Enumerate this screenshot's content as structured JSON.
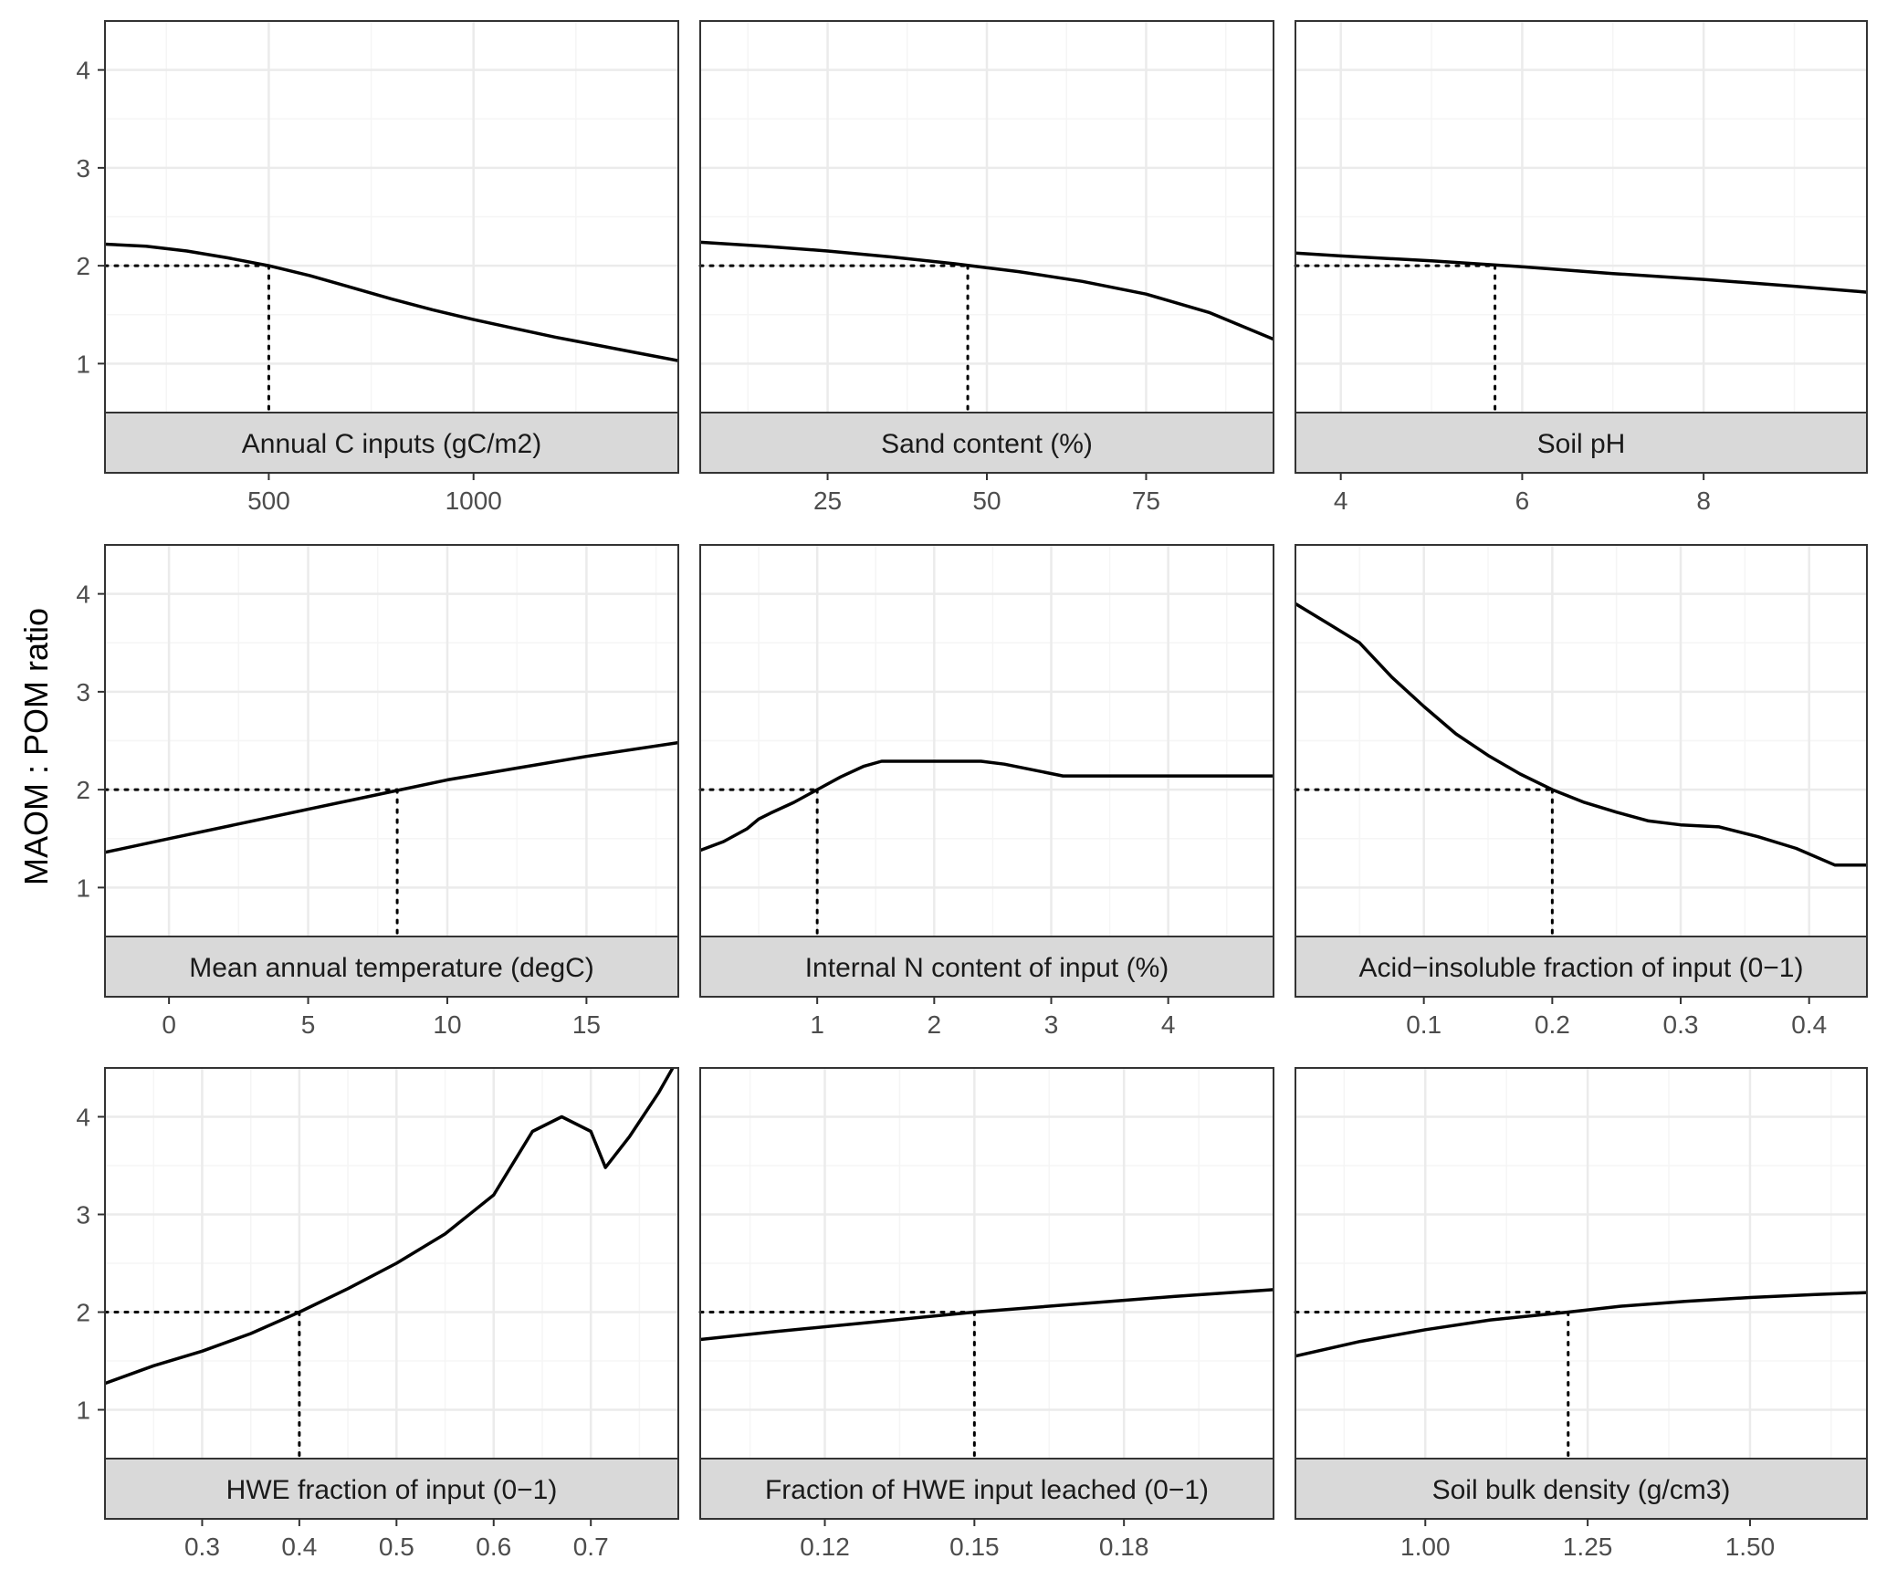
{
  "figure": {
    "ylabel": "MAOM : POM ratio",
    "colors": {
      "line": "#000000",
      "grid_major": "#ebebeb",
      "grid_minor": "#f5f5f5",
      "panel_border": "#333333",
      "strip_fill": "#d9d9d9",
      "tick_text": "#4d4d4d"
    }
  },
  "chart_data": [
    {
      "type": "line",
      "strip": "Annual C inputs (gC/m2)",
      "xlim": [
        100,
        1500
      ],
      "ylim": [
        0.5,
        4.5
      ],
      "xticks": [
        500,
        1000
      ],
      "xtick_labels": [
        "500",
        "1000"
      ],
      "yticks": [
        1,
        2,
        3,
        4
      ],
      "ytick_labels": [
        "1",
        "2",
        "3",
        "4"
      ],
      "x": [
        100,
        200,
        300,
        400,
        500,
        600,
        700,
        800,
        900,
        1000,
        1100,
        1200,
        1300,
        1400,
        1500
      ],
      "y": [
        2.22,
        2.2,
        2.15,
        2.08,
        2.0,
        1.9,
        1.78,
        1.66,
        1.55,
        1.45,
        1.36,
        1.27,
        1.19,
        1.11,
        1.03
      ],
      "reference": {
        "x": 500,
        "y": 2.0
      }
    },
    {
      "type": "line",
      "strip": "Sand content (%)",
      "xlim": [
        5,
        95
      ],
      "ylim": [
        0.5,
        4.5
      ],
      "xticks": [
        25,
        50,
        75
      ],
      "xtick_labels": [
        "25",
        "50",
        "75"
      ],
      "yticks": [
        1,
        2,
        3,
        4
      ],
      "ytick_labels": [
        "1",
        "2",
        "3",
        "4"
      ],
      "x": [
        5,
        15,
        25,
        35,
        45,
        55,
        65,
        75,
        85,
        95
      ],
      "y": [
        2.24,
        2.2,
        2.15,
        2.09,
        2.02,
        1.94,
        1.84,
        1.71,
        1.52,
        1.25
      ],
      "reference": {
        "x": 47,
        "y": 2.0
      }
    },
    {
      "type": "line",
      "strip": "Soil pH",
      "xlim": [
        3.5,
        9.8
      ],
      "ylim": [
        0.5,
        4.5
      ],
      "xticks": [
        4,
        6,
        8
      ],
      "xtick_labels": [
        "4",
        "6",
        "8"
      ],
      "yticks": [
        1,
        2,
        3,
        4
      ],
      "ytick_labels": [
        "1",
        "2",
        "3",
        "4"
      ],
      "x": [
        3.5,
        4,
        5,
        6,
        7,
        8,
        9,
        9.8
      ],
      "y": [
        2.13,
        2.1,
        2.05,
        1.99,
        1.92,
        1.86,
        1.79,
        1.73
      ],
      "reference": {
        "x": 5.7,
        "y": 2.0
      }
    },
    {
      "type": "line",
      "strip": "Mean annual temperature (degC)",
      "xlim": [
        -2.3,
        18.3
      ],
      "ylim": [
        0.5,
        4.5
      ],
      "xticks": [
        0,
        5,
        10,
        15
      ],
      "xtick_labels": [
        "0",
        "5",
        "10",
        "15"
      ],
      "yticks": [
        1,
        2,
        3,
        4
      ],
      "ytick_labels": [
        "1",
        "2",
        "3",
        "4"
      ],
      "x": [
        -2.3,
        0,
        2.5,
        5,
        7.5,
        10,
        12.5,
        15,
        18.3
      ],
      "y": [
        1.36,
        1.5,
        1.65,
        1.8,
        1.95,
        2.1,
        2.22,
        2.34,
        2.48
      ],
      "reference": {
        "x": 8.2,
        "y": 2.0
      }
    },
    {
      "type": "line",
      "strip": "Internal N content of input (%)",
      "xlim": [
        0,
        4.9
      ],
      "ylim": [
        0.5,
        4.5
      ],
      "xticks": [
        1,
        2,
        3,
        4
      ],
      "xtick_labels": [
        "1",
        "2",
        "3",
        "4"
      ],
      "yticks": [
        1,
        2,
        3,
        4
      ],
      "ytick_labels": [
        "1",
        "2",
        "3",
        "4"
      ],
      "x": [
        0,
        0.2,
        0.4,
        0.5,
        0.6,
        0.8,
        1.0,
        1.2,
        1.4,
        1.55,
        2.0,
        2.4,
        2.6,
        3.1,
        3.5,
        4.9
      ],
      "y": [
        1.38,
        1.47,
        1.6,
        1.7,
        1.76,
        1.87,
        2.0,
        2.13,
        2.24,
        2.29,
        2.29,
        2.29,
        2.26,
        2.14,
        2.14,
        2.14
      ],
      "reference": {
        "x": 1.0,
        "y": 2.0
      }
    },
    {
      "type": "line",
      "strip": "Acid−insoluble fraction of input (0−1)",
      "xlim": [
        0,
        0.445
      ],
      "ylim": [
        0.5,
        4.5
      ],
      "xticks": [
        0.1,
        0.2,
        0.3,
        0.4
      ],
      "xtick_labels": [
        "0.1",
        "0.2",
        "0.3",
        "0.4"
      ],
      "yticks": [
        1,
        2,
        3,
        4
      ],
      "ytick_labels": [
        "1",
        "2",
        "3",
        "4"
      ],
      "x": [
        0,
        0.025,
        0.05,
        0.075,
        0.1,
        0.125,
        0.15,
        0.175,
        0.2,
        0.225,
        0.25,
        0.275,
        0.3,
        0.33,
        0.36,
        0.39,
        0.42,
        0.445
      ],
      "y": [
        3.9,
        3.7,
        3.5,
        3.15,
        2.85,
        2.57,
        2.35,
        2.16,
        2.0,
        1.87,
        1.77,
        1.68,
        1.64,
        1.62,
        1.52,
        1.4,
        1.23,
        1.23
      ],
      "reference": {
        "x": 0.2,
        "y": 2.0
      }
    },
    {
      "type": "line",
      "strip": "HWE fraction of input (0−1)",
      "xlim": [
        0.2,
        0.79
      ],
      "ylim": [
        0.5,
        4.5
      ],
      "xticks": [
        0.3,
        0.4,
        0.5,
        0.6,
        0.7
      ],
      "xtick_labels": [
        "0.3",
        "0.4",
        "0.5",
        "0.6",
        "0.7"
      ],
      "yticks": [
        1,
        2,
        3,
        4
      ],
      "ytick_labels": [
        "1",
        "2",
        "3",
        "4"
      ],
      "x": [
        0.2,
        0.25,
        0.3,
        0.35,
        0.4,
        0.45,
        0.5,
        0.55,
        0.6,
        0.64,
        0.67,
        0.7,
        0.715,
        0.74,
        0.77,
        0.79
      ],
      "y": [
        1.27,
        1.45,
        1.6,
        1.78,
        2.0,
        2.24,
        2.5,
        2.8,
        3.2,
        3.85,
        4.0,
        3.85,
        3.48,
        3.8,
        4.25,
        4.6
      ],
      "reference": {
        "x": 0.4,
        "y": 2.0
      }
    },
    {
      "type": "line",
      "strip": "Fraction of HWE input leached (0−1)",
      "xlim": [
        0.095,
        0.21
      ],
      "ylim": [
        0.5,
        4.5
      ],
      "xticks": [
        0.12,
        0.15,
        0.18
      ],
      "xtick_labels": [
        "0.12",
        "0.15",
        "0.18"
      ],
      "yticks": [
        1,
        2,
        3,
        4
      ],
      "ytick_labels": [
        "1",
        "2",
        "3",
        "4"
      ],
      "x": [
        0.095,
        0.11,
        0.13,
        0.15,
        0.17,
        0.19,
        0.21
      ],
      "y": [
        1.72,
        1.8,
        1.9,
        2.0,
        2.08,
        2.16,
        2.23
      ],
      "reference": {
        "x": 0.15,
        "y": 2.0
      }
    },
    {
      "type": "line",
      "strip": "Soil bulk density (g/cm3)",
      "xlim": [
        0.8,
        1.68
      ],
      "ylim": [
        0.5,
        4.5
      ],
      "xticks": [
        1.0,
        1.25,
        1.5
      ],
      "xtick_labels": [
        "1.00",
        "1.25",
        "1.50"
      ],
      "yticks": [
        1,
        2,
        3,
        4
      ],
      "ytick_labels": [
        "1",
        "2",
        "3",
        "4"
      ],
      "x": [
        0.8,
        0.9,
        1.0,
        1.1,
        1.22,
        1.3,
        1.4,
        1.5,
        1.6,
        1.68
      ],
      "y": [
        1.55,
        1.7,
        1.82,
        1.92,
        2.0,
        2.06,
        2.11,
        2.15,
        2.18,
        2.2
      ],
      "reference": {
        "x": 1.22,
        "y": 2.0
      }
    }
  ]
}
